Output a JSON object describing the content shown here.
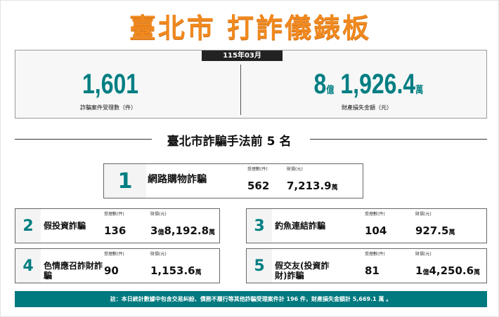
{
  "title": "臺北市  打詐儀錶板",
  "summary": {
    "period": "115年03月",
    "cases": "1,601",
    "cases_label": "詐騙案件受理數（件）",
    "loss_yi": "8",
    "yi_unit": "億",
    "loss_wan": "1,926.4",
    "wan_unit": "萬",
    "loss_label": "財產損失金額（元）"
  },
  "ranking": {
    "heading": "臺北市詐騙手法前 5 名",
    "cases_label": "受理數(件)",
    "loss_label": "財損(元)",
    "items": [
      {
        "rank": "1",
        "name": "網路購物詐騙",
        "cases": "562",
        "loss_yi": "",
        "loss_wan": "7,213.9"
      },
      {
        "rank": "2",
        "name": "假投資詐騙",
        "cases": "136",
        "loss_yi": "3",
        "loss_wan": "8,192.8"
      },
      {
        "rank": "3",
        "name": "釣魚連結詐騙",
        "cases": "104",
        "loss_yi": "",
        "loss_wan": "927.5"
      },
      {
        "rank": "4",
        "name": "色情應召詐財詐騙",
        "cases": "90",
        "loss_yi": "",
        "loss_wan": "1,153.6"
      },
      {
        "rank": "5",
        "name": "假交友(投資詐財)詐騙",
        "cases": "81",
        "loss_yi": "1",
        "loss_wan": "4,250.6"
      }
    ]
  },
  "footer": "註：本日統計數據中包含交易糾紛、債務不履行等其他詐騙受理案件計 196 件，財產損失金額計 5,669.1 萬 。",
  "colors": {
    "accent": "#007e82",
    "title": "#f0891f"
  }
}
